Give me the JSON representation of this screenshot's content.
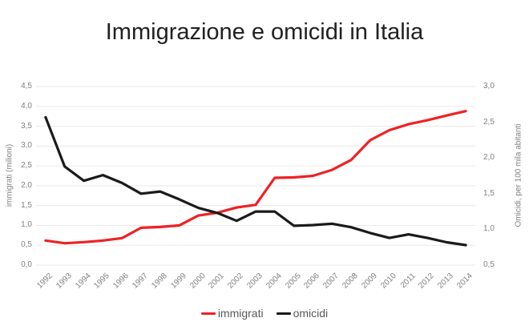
{
  "chart_data": {
    "type": "line",
    "title": "Immigrazione e omicidi in Italia",
    "x_categories": [
      "1992",
      "1993",
      "1994",
      "1995",
      "1996",
      "1997",
      "1998",
      "1999",
      "2000",
      "2001",
      "2002",
      "2003",
      "2004",
      "2005",
      "2006",
      "2007",
      "2008",
      "2009",
      "2010",
      "2011",
      "2012",
      "2013",
      "2014"
    ],
    "series": [
      {
        "name": "immigrati",
        "axis": "left",
        "color": "#ee2224",
        "values": [
          0.62,
          0.55,
          0.58,
          0.62,
          0.68,
          0.94,
          0.96,
          1.0,
          1.25,
          1.32,
          1.45,
          1.52,
          2.2,
          2.21,
          2.25,
          2.4,
          2.65,
          3.15,
          3.4,
          3.55,
          3.65,
          3.77,
          3.88
        ]
      },
      {
        "name": "omicidi",
        "axis": "right",
        "color": "#1a1a1a",
        "values": [
          2.57,
          1.88,
          1.68,
          1.76,
          1.65,
          1.5,
          1.53,
          1.42,
          1.3,
          1.23,
          1.12,
          1.25,
          1.25,
          1.05,
          1.06,
          1.08,
          1.03,
          0.95,
          0.88,
          0.93,
          0.88,
          0.82,
          0.78
        ]
      }
    ],
    "left_axis": {
      "label": "immigrati (milioni)",
      "ticks": [
        "4,5",
        "4,0",
        "3,5",
        "3,0",
        "2,5",
        "2,0",
        "1,5",
        "1,0",
        "0,5",
        "0,0"
      ],
      "range": [
        0,
        4.5
      ]
    },
    "right_axis": {
      "label": "Omicidi, per 100 mila abitanti",
      "ticks": [
        "3,0",
        "2,5",
        "2,0",
        "1,5",
        "1,0",
        "0,5"
      ],
      "range": [
        0.5,
        3.0
      ]
    },
    "grid": true,
    "grid_color": "#e9e9e9",
    "background": "#ffffff",
    "legend_position": "bottom"
  }
}
